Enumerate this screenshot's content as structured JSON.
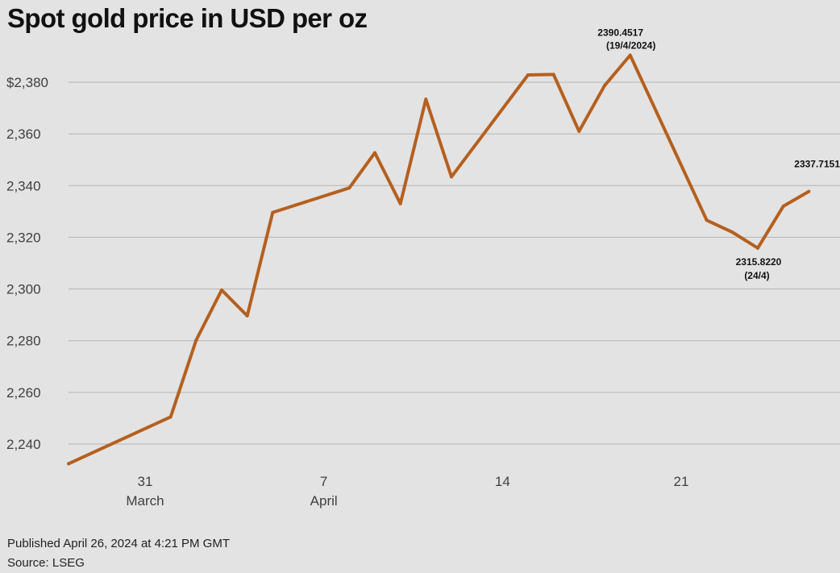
{
  "chart_data": {
    "type": "line",
    "title": "Spot gold price in USD per oz",
    "xlabel": "",
    "ylabel": "",
    "ylim": [
      2232,
      2392
    ],
    "xlim": [
      "2024-03-28",
      "2024-04-26"
    ],
    "y_ticks": [
      "$2,380",
      "2,360",
      "2,340",
      "2,320",
      "2,300",
      "2,280",
      "2,260",
      "2,240"
    ],
    "y_tick_values": [
      2380,
      2360,
      2340,
      2320,
      2300,
      2280,
      2260,
      2240
    ],
    "x_ticks": [
      {
        "date": "2024-03-31",
        "label": "31",
        "sublabel": "March"
      },
      {
        "date": "2024-04-07",
        "label": "7",
        "sublabel": "April"
      },
      {
        "date": "2024-04-14",
        "label": "14",
        "sublabel": ""
      },
      {
        "date": "2024-04-21",
        "label": "21",
        "sublabel": ""
      }
    ],
    "grid": true,
    "line_color": "#b5601f",
    "series": [
      {
        "x": [
          "2024-03-28",
          "2024-04-01",
          "2024-04-02",
          "2024-04-03",
          "2024-04-04",
          "2024-04-05",
          "2024-04-08",
          "2024-04-09",
          "2024-04-10",
          "2024-04-11",
          "2024-04-12",
          "2024-04-15",
          "2024-04-16",
          "2024-04-17",
          "2024-04-18",
          "2024-04-19",
          "2024-04-22",
          "2024-04-23",
          "2024-04-24",
          "2024-04-25",
          "2024-04-26"
        ],
        "values": [
          2232.4,
          2250.5,
          2280.2,
          2299.6,
          2289.6,
          2329.6,
          2339.1,
          2352.7,
          2333.0,
          2373.4,
          2343.4,
          2382.8,
          2383.0,
          2361.0,
          2378.7,
          2390.4517,
          2326.6,
          2322.0,
          2315.822,
          2332.0,
          2337.7151
        ]
      }
    ],
    "annotations": [
      {
        "date": "2024-04-19",
        "value": 2390.4517,
        "label": "2390.4517",
        "sublabel": "(19/4/2024)",
        "position": "above"
      },
      {
        "date": "2024-04-24",
        "value": 2315.822,
        "label": "2315.8220",
        "sublabel": "(24/4)",
        "position": "below"
      },
      {
        "date": "2024-04-26",
        "value": 2337.7151,
        "label": "2337.7151",
        "sublabel": "",
        "position": "above"
      }
    ]
  },
  "footer": {
    "published": "Published April 26, 2024 at 4:21 PM GMT",
    "source": "Source: LSEG"
  }
}
